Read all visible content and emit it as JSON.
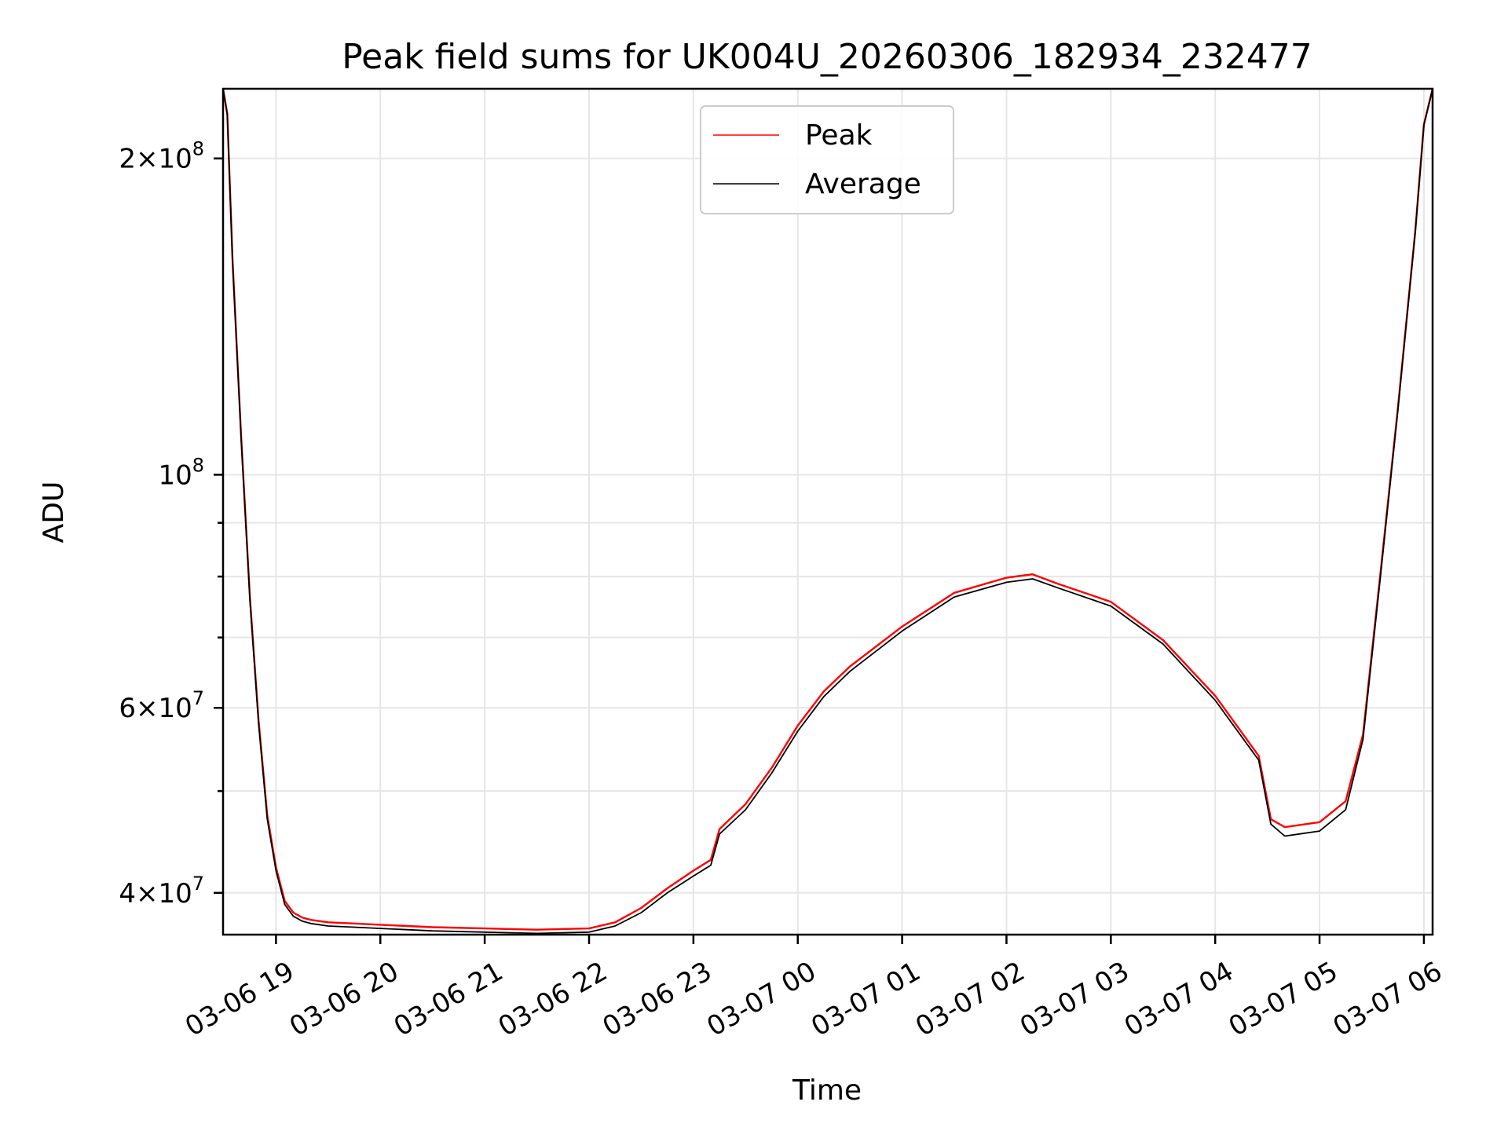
{
  "chart_data": {
    "type": "line",
    "title": "Peak field sums for UK004U_20260306_182934_232477",
    "xlabel": "Time",
    "ylabel": "ADU",
    "xlim": [
      "2026-03-06T18:29:34",
      "2026-03-07T06:05:00"
    ],
    "ylim": [
      36500000,
      233000000
    ],
    "yscale": "log",
    "grid": true,
    "legend": {
      "position": "upper-center",
      "entries": [
        "Peak",
        "Average"
      ]
    },
    "x_ticks": [
      {
        "value": "2026-03-06T19:00",
        "label": "03-06 19"
      },
      {
        "value": "2026-03-06T20:00",
        "label": "03-06 20"
      },
      {
        "value": "2026-03-06T21:00",
        "label": "03-06 21"
      },
      {
        "value": "2026-03-06T22:00",
        "label": "03-06 22"
      },
      {
        "value": "2026-03-06T23:00",
        "label": "03-06 23"
      },
      {
        "value": "2026-03-07T00:00",
        "label": "03-07 00"
      },
      {
        "value": "2026-03-07T01:00",
        "label": "03-07 01"
      },
      {
        "value": "2026-03-07T02:00",
        "label": "03-07 02"
      },
      {
        "value": "2026-03-07T03:00",
        "label": "03-07 03"
      },
      {
        "value": "2026-03-07T04:00",
        "label": "03-07 04"
      },
      {
        "value": "2026-03-07T05:00",
        "label": "03-07 05"
      },
      {
        "value": "2026-03-07T06:00",
        "label": "03-07 06"
      }
    ],
    "y_ticks": [
      {
        "value": 40000000,
        "mantissa": "4",
        "exp": "7"
      },
      {
        "value": 60000000,
        "mantissa": "6",
        "exp": "7"
      },
      {
        "value": 100000000,
        "mantissa": "",
        "exp": "8"
      },
      {
        "value": 200000000,
        "mantissa": "2",
        "exp": "8"
      }
    ],
    "y_minor_ticks": [
      50000000,
      70000000,
      80000000,
      90000000
    ],
    "series": [
      {
        "name": "Average",
        "color": "#000000",
        "x": [
          "2026-03-06T18:29:34",
          "2026-03-06T18:32:00",
          "2026-03-06T18:35:00",
          "2026-03-06T18:40:00",
          "2026-03-06T18:45:00",
          "2026-03-06T18:50:00",
          "2026-03-06T18:55:00",
          "2026-03-06T19:00:00",
          "2026-03-06T19:05:00",
          "2026-03-06T19:10:00",
          "2026-03-06T19:15:00",
          "2026-03-06T19:20:00",
          "2026-03-06T19:30:00",
          "2026-03-06T19:45:00",
          "2026-03-06T20:00:00",
          "2026-03-06T20:30:00",
          "2026-03-06T21:00:00",
          "2026-03-06T21:30:00",
          "2026-03-06T22:00:00",
          "2026-03-06T22:15:00",
          "2026-03-06T22:30:00",
          "2026-03-06T22:45:00",
          "2026-03-06T23:00:00",
          "2026-03-06T23:10:00",
          "2026-03-06T23:15:00",
          "2026-03-06T23:30:00",
          "2026-03-06T23:45:00",
          "2026-03-07T00:00:00",
          "2026-03-07T00:15:00",
          "2026-03-07T00:30:00",
          "2026-03-07T01:00:00",
          "2026-03-07T01:30:00",
          "2026-03-07T02:00:00",
          "2026-03-07T02:15:00",
          "2026-03-07T02:30:00",
          "2026-03-07T03:00:00",
          "2026-03-07T03:30:00",
          "2026-03-07T04:00:00",
          "2026-03-07T04:25:00",
          "2026-03-07T04:32:00",
          "2026-03-07T04:40:00",
          "2026-03-07T05:00:00",
          "2026-03-07T05:15:00",
          "2026-03-07T05:25:00",
          "2026-03-07T05:35:00",
          "2026-03-07T05:45:00",
          "2026-03-07T05:55:00",
          "2026-03-07T06:00:00",
          "2026-03-07T06:05:00"
        ],
        "values": [
          233000000,
          220000000,
          160000000,
          108000000,
          76000000,
          58000000,
          47000000,
          42000000,
          39000000,
          38000000,
          37600000,
          37400000,
          37200000,
          37100000,
          37000000,
          36800000,
          36700000,
          36600000,
          36700000,
          37200000,
          38300000,
          40000000,
          41500000,
          42500000,
          45500000,
          48000000,
          52000000,
          57000000,
          61500000,
          65000000,
          71000000,
          76500000,
          79000000,
          79600000,
          78000000,
          75000000,
          69000000,
          61000000,
          53500000,
          46500000,
          45300000,
          45800000,
          48000000,
          56000000,
          80000000,
          115000000,
          170000000,
          215000000,
          233000000
        ]
      },
      {
        "name": "Peak",
        "color": "#ff0000",
        "x": [
          "2026-03-06T18:29:34",
          "2026-03-06T18:32:00",
          "2026-03-06T18:35:00",
          "2026-03-06T18:40:00",
          "2026-03-06T18:45:00",
          "2026-03-06T18:50:00",
          "2026-03-06T18:55:00",
          "2026-03-06T19:00:00",
          "2026-03-06T19:05:00",
          "2026-03-06T19:10:00",
          "2026-03-06T19:15:00",
          "2026-03-06T19:20:00",
          "2026-03-06T19:30:00",
          "2026-03-06T19:45:00",
          "2026-03-06T20:00:00",
          "2026-03-06T20:30:00",
          "2026-03-06T21:00:00",
          "2026-03-06T21:30:00",
          "2026-03-06T22:00:00",
          "2026-03-06T22:15:00",
          "2026-03-06T22:30:00",
          "2026-03-06T22:45:00",
          "2026-03-06T23:00:00",
          "2026-03-06T23:10:00",
          "2026-03-06T23:15:00",
          "2026-03-06T23:30:00",
          "2026-03-06T23:45:00",
          "2026-03-07T00:00:00",
          "2026-03-07T00:15:00",
          "2026-03-07T00:30:00",
          "2026-03-07T01:00:00",
          "2026-03-07T01:30:00",
          "2026-03-07T02:00:00",
          "2026-03-07T02:15:00",
          "2026-03-07T02:30:00",
          "2026-03-07T03:00:00",
          "2026-03-07T03:30:00",
          "2026-03-07T04:00:00",
          "2026-03-07T04:25:00",
          "2026-03-07T04:32:00",
          "2026-03-07T04:40:00",
          "2026-03-07T05:00:00",
          "2026-03-07T05:15:00",
          "2026-03-07T05:25:00",
          "2026-03-07T05:35:00",
          "2026-03-07T05:45:00",
          "2026-03-07T05:55:00",
          "2026-03-07T06:00:00",
          "2026-03-07T06:05:00"
        ],
        "values": [
          233000000,
          220500000,
          160500000,
          108500000,
          76400000,
          58400000,
          47400000,
          42300000,
          39300000,
          38300000,
          37900000,
          37700000,
          37500000,
          37400000,
          37300000,
          37100000,
          37000000,
          36900000,
          37000000,
          37500000,
          38700000,
          40400000,
          42000000,
          43000000,
          46000000,
          48600000,
          52600000,
          57700000,
          62200000,
          65700000,
          71700000,
          77200000,
          79800000,
          80400000,
          78700000,
          75700000,
          69600000,
          61600000,
          54000000,
          47000000,
          46200000,
          46700000,
          48900000,
          56600000,
          80600000,
          115500000,
          170500000,
          215500000,
          233000000
        ]
      }
    ]
  }
}
